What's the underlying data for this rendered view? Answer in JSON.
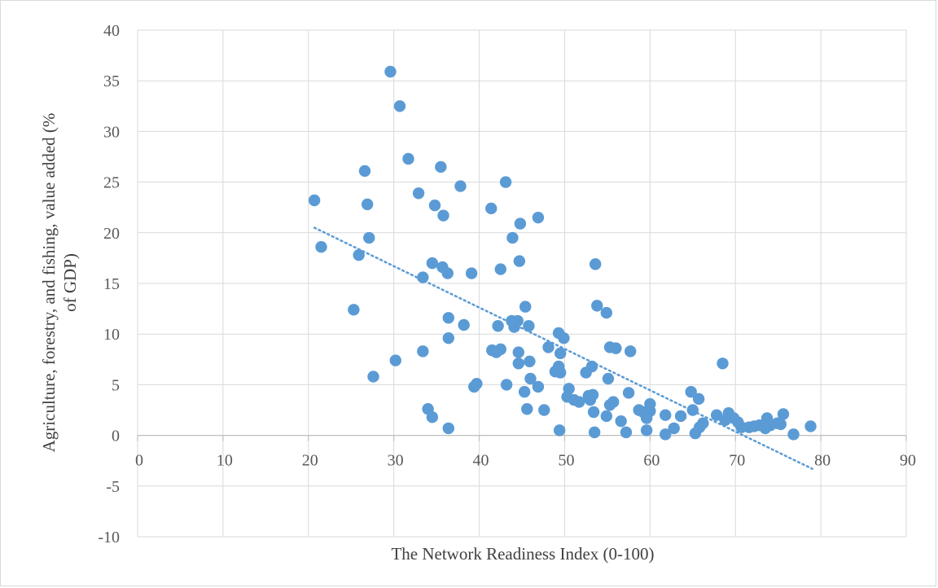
{
  "chart_data": {
    "type": "scatter",
    "title": "",
    "xlabel": "The Network Readiness Index (0-100)",
    "ylabel_lines": [
      "Agriculture, forestry, and fishing, value added (%",
      "of GDP)"
    ],
    "xlim": [
      0,
      90
    ],
    "ylim": [
      -10,
      40
    ],
    "x_ticks": [
      0,
      10,
      20,
      30,
      40,
      50,
      60,
      70,
      80,
      90
    ],
    "y_ticks": [
      -10,
      -5,
      0,
      5,
      10,
      15,
      20,
      25,
      30,
      35,
      40
    ],
    "grid": true,
    "legend": "none",
    "marker_color": "#5b9bd5",
    "trendline": {
      "type": "linear",
      "style": "dotted",
      "color": "#5b9bd5",
      "x": [
        20.7,
        79.0
      ],
      "y": [
        20.5,
        -3.3
      ]
    },
    "points": [
      [
        20.7,
        23.2
      ],
      [
        21.5,
        18.6
      ],
      [
        25.3,
        12.4
      ],
      [
        25.9,
        17.8
      ],
      [
        26.6,
        26.1
      ],
      [
        26.9,
        22.8
      ],
      [
        27.1,
        19.5
      ],
      [
        27.6,
        5.8
      ],
      [
        29.6,
        35.9
      ],
      [
        30.2,
        7.4
      ],
      [
        30.7,
        32.5
      ],
      [
        31.7,
        27.3
      ],
      [
        32.9,
        23.9
      ],
      [
        33.4,
        15.6
      ],
      [
        33.4,
        8.3
      ],
      [
        34.0,
        2.6
      ],
      [
        34.5,
        17.0
      ],
      [
        34.5,
        1.8
      ],
      [
        34.8,
        22.7
      ],
      [
        35.5,
        26.5
      ],
      [
        35.7,
        16.6
      ],
      [
        35.8,
        21.7
      ],
      [
        36.3,
        16.0
      ],
      [
        36.4,
        11.6
      ],
      [
        36.4,
        9.6
      ],
      [
        36.4,
        0.7
      ],
      [
        37.8,
        24.6
      ],
      [
        38.2,
        10.9
      ],
      [
        39.1,
        16.0
      ],
      [
        39.4,
        4.8
      ],
      [
        39.7,
        5.1
      ],
      [
        41.4,
        22.4
      ],
      [
        41.5,
        8.4
      ],
      [
        42.0,
        8.2
      ],
      [
        42.2,
        10.8
      ],
      [
        42.5,
        16.4
      ],
      [
        42.5,
        8.5
      ],
      [
        43.1,
        25.0
      ],
      [
        43.2,
        5.0
      ],
      [
        43.8,
        11.3
      ],
      [
        43.9,
        19.5
      ],
      [
        44.1,
        10.7
      ],
      [
        44.5,
        11.3
      ],
      [
        44.6,
        8.2
      ],
      [
        44.6,
        7.1
      ],
      [
        44.7,
        17.2
      ],
      [
        44.8,
        20.9
      ],
      [
        45.3,
        4.3
      ],
      [
        45.4,
        12.7
      ],
      [
        45.6,
        2.6
      ],
      [
        45.8,
        10.8
      ],
      [
        45.9,
        7.3
      ],
      [
        46.0,
        5.6
      ],
      [
        46.9,
        21.5
      ],
      [
        46.9,
        4.8
      ],
      [
        47.6,
        2.5
      ],
      [
        48.1,
        8.7
      ],
      [
        48.9,
        6.3
      ],
      [
        49.3,
        10.1
      ],
      [
        49.3,
        6.8
      ],
      [
        49.4,
        0.5
      ],
      [
        49.5,
        6.2
      ],
      [
        49.5,
        8.1
      ],
      [
        49.9,
        9.6
      ],
      [
        50.3,
        3.8
      ],
      [
        50.5,
        4.6
      ],
      [
        51.1,
        3.5
      ],
      [
        51.7,
        3.3
      ],
      [
        52.5,
        6.2
      ],
      [
        52.8,
        3.9
      ],
      [
        53.0,
        3.5
      ],
      [
        53.2,
        6.8
      ],
      [
        53.3,
        4.0
      ],
      [
        53.4,
        2.3
      ],
      [
        53.5,
        0.3
      ],
      [
        53.6,
        16.9
      ],
      [
        53.8,
        12.8
      ],
      [
        54.9,
        12.1
      ],
      [
        54.9,
        1.9
      ],
      [
        55.1,
        5.6
      ],
      [
        55.3,
        8.7
      ],
      [
        55.3,
        3.0
      ],
      [
        55.7,
        3.3
      ],
      [
        56.0,
        8.6
      ],
      [
        56.6,
        1.4
      ],
      [
        57.2,
        0.3
      ],
      [
        57.7,
        8.3
      ],
      [
        57.5,
        4.2
      ],
      [
        58.7,
        2.5
      ],
      [
        59.2,
        2.3
      ],
      [
        59.6,
        1.7
      ],
      [
        59.6,
        0.5
      ],
      [
        60.0,
        3.1
      ],
      [
        60.0,
        2.4
      ],
      [
        61.8,
        2.0
      ],
      [
        61.8,
        0.1
      ],
      [
        62.8,
        0.7
      ],
      [
        63.6,
        1.9
      ],
      [
        64.8,
        4.3
      ],
      [
        65.0,
        2.5
      ],
      [
        65.3,
        0.2
      ],
      [
        65.7,
        3.6
      ],
      [
        65.8,
        0.8
      ],
      [
        66.2,
        1.2
      ],
      [
        67.8,
        2.0
      ],
      [
        68.5,
        7.1
      ],
      [
        68.8,
        1.5
      ],
      [
        69.2,
        2.2
      ],
      [
        69.8,
        1.7
      ],
      [
        70.3,
        1.3
      ],
      [
        70.7,
        0.8
      ],
      [
        71.6,
        0.8
      ],
      [
        72.2,
        0.9
      ],
      [
        72.8,
        1.0
      ],
      [
        73.5,
        0.7
      ],
      [
        73.7,
        1.7
      ],
      [
        74.1,
        1.0
      ],
      [
        74.9,
        1.2
      ],
      [
        75.3,
        1.1
      ],
      [
        75.6,
        2.1
      ],
      [
        76.8,
        0.1
      ],
      [
        78.8,
        0.9
      ]
    ]
  }
}
